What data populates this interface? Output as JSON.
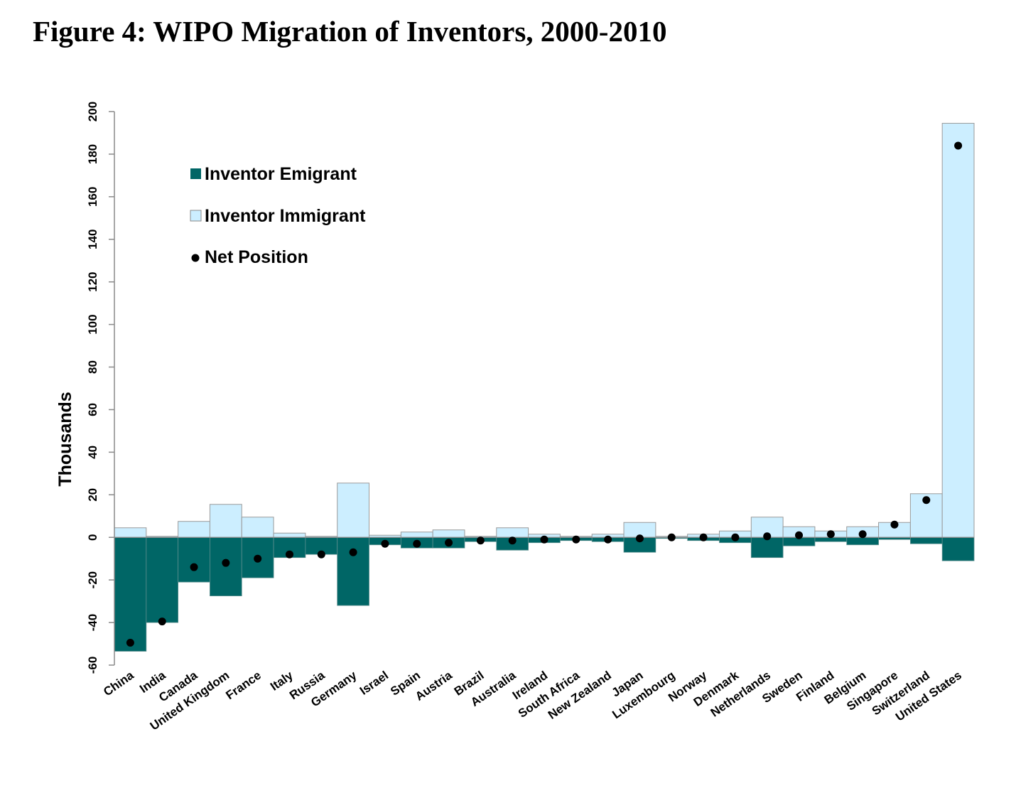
{
  "figure": {
    "title": "Figure 4: WIPO Migration of Inventors, 2000-2010"
  },
  "chart_data": {
    "type": "bar",
    "title": "",
    "xlabel": "",
    "ylabel": "Thousands",
    "ylim": [
      -60,
      200
    ],
    "yticks": [
      -60,
      -40,
      -20,
      0,
      20,
      40,
      60,
      80,
      100,
      120,
      140,
      160,
      180,
      200
    ],
    "grid": false,
    "legend_position": "top-left",
    "colors": {
      "emigrant": "#006666",
      "immigrant": "#cceeff",
      "net": "#000000",
      "bar_outline": "#9a9a9a"
    },
    "categories": [
      "China",
      "India",
      "Canada",
      "United Kingdom",
      "France",
      "Italy",
      "Russia",
      "Germany",
      "Israel",
      "Spain",
      "Austria",
      "Brazil",
      "Australia",
      "Ireland",
      "South Africa",
      "New Zealand",
      "Japan",
      "Luxembourg",
      "Norway",
      "Denmark",
      "Netherlands",
      "Sweden",
      "Finland",
      "Belgium",
      "Singapore",
      "Switzerland",
      "United States"
    ],
    "series": [
      {
        "name": "Inventor Emigrant",
        "type": "bar",
        "values": [
          -53.5,
          -40,
          -21,
          -27.5,
          -19,
          -9.5,
          -8,
          -32,
          -3.5,
          -5,
          -5,
          -2,
          -6,
          -2.5,
          -1.5,
          -2,
          -7,
          -0.5,
          -1.5,
          -2.5,
          -9.5,
          -4,
          -2,
          -3.5,
          -1,
          -3,
          -11
        ]
      },
      {
        "name": "Inventor Immigrant",
        "type": "bar",
        "values": [
          4.5,
          0.5,
          7.5,
          15.5,
          9.5,
          2,
          0.5,
          25.5,
          1,
          2.5,
          3.5,
          0.5,
          4.5,
          1.5,
          0.5,
          1.5,
          7,
          0.5,
          1.5,
          3,
          9.5,
          5,
          3,
          5,
          7,
          20.5,
          194.5
        ]
      },
      {
        "name": "Net Position",
        "type": "scatter",
        "values": [
          -49.5,
          -39.5,
          -14,
          -12,
          -10,
          -8,
          -8,
          -7,
          -3,
          -3,
          -2.5,
          -1.5,
          -1.5,
          -1,
          -1,
          -1,
          -0.5,
          0,
          0,
          0,
          0.5,
          1,
          1.5,
          1.5,
          6,
          17.5,
          184
        ]
      }
    ]
  }
}
